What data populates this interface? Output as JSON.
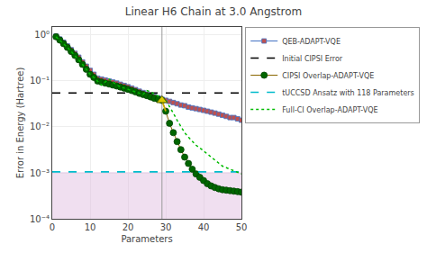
{
  "chart_data": {
    "type": "line",
    "title": "Linear H6 Chain at 3.0 Angstrom",
    "x_label": "Parameters",
    "y_label": "Error in Energy (Hartree)",
    "x": [
      1,
      2,
      3,
      4,
      5,
      6,
      7,
      8,
      9,
      10,
      11,
      12,
      13,
      14,
      15,
      16,
      17,
      18,
      19,
      20,
      21,
      22,
      23,
      24,
      25,
      26,
      27,
      28,
      29,
      30,
      31,
      32,
      33,
      34,
      35,
      36,
      37,
      38,
      39,
      40,
      41,
      42,
      43,
      44,
      45,
      46,
      47,
      48,
      49,
      50
    ],
    "xlim": [
      0,
      50
    ],
    "xticks": [
      0,
      10,
      20,
      30,
      40,
      50
    ],
    "ylim": [
      0.0001,
      1.5
    ],
    "yticks": [
      {
        "value": 0.0001,
        "label": "10⁻⁴"
      },
      {
        "value": 0.001,
        "label": "10⁻³"
      },
      {
        "value": 0.01,
        "label": "10⁻²"
      },
      {
        "value": 0.1,
        "label": "10⁻¹"
      },
      {
        "value": 1,
        "label": "10⁰"
      }
    ],
    "log": "y",
    "grid": true,
    "legend": "upper right",
    "bands": [
      {
        "y0": 0.0001,
        "y1": 0.00105,
        "color": "#ddb8dd"
      }
    ],
    "vlines": [
      {
        "x": 29,
        "color": "#999999"
      }
    ],
    "series": [
      {
        "name": "QEB-ADAPT-VQE",
        "type": "line",
        "color": "#4472c4",
        "marker": "square",
        "marker_color": "#c0504d",
        "line_style": "solid",
        "values": [
          0.95,
          0.82,
          0.7,
          0.58,
          0.48,
          0.4,
          0.33,
          0.26,
          0.21,
          0.17,
          0.14,
          0.115,
          0.11,
          0.105,
          0.1,
          0.095,
          0.09,
          0.085,
          0.08,
          0.075,
          0.07,
          0.065,
          0.06,
          0.056,
          0.052,
          0.049,
          0.046,
          0.043,
          0.04,
          0.038,
          0.036,
          0.034,
          0.032,
          0.03,
          0.029,
          0.027,
          0.026,
          0.025,
          0.024,
          0.023,
          0.022,
          0.021,
          0.02,
          0.019,
          0.018,
          0.017,
          0.016,
          0.016,
          0.015,
          0.014
        ]
      },
      {
        "name": "Initial CIPSI Error",
        "type": "hline",
        "y": 0.055,
        "color": "#000000",
        "line_style": "dashed"
      },
      {
        "name": "CIPSI Overlap-ADAPT-VQE",
        "type": "line",
        "color": "#886600",
        "marker": "circle",
        "marker_color": "#006600",
        "marker_edge_color": "#004400",
        "line_style": "solid",
        "values": [
          0.92,
          0.78,
          0.65,
          0.54,
          0.44,
          0.36,
          0.29,
          0.23,
          0.18,
          0.14,
          0.12,
          0.1,
          0.095,
          0.09,
          0.086,
          0.082,
          0.078,
          0.074,
          0.07,
          0.066,
          0.062,
          0.058,
          0.054,
          0.051,
          0.048,
          0.045,
          0.042,
          0.04,
          0.038,
          0.022,
          0.012,
          0.0075,
          0.0048,
          0.0032,
          0.0022,
          0.0016,
          0.0012,
          0.00095,
          0.0008,
          0.00068,
          0.00058,
          0.00052,
          0.00048,
          0.00045,
          0.00043,
          0.00042,
          0.00041,
          0.0004,
          0.00039,
          0.00038
        ],
        "highlight": {
          "x": [
            29,
            30
          ],
          "color": "#ccaa00",
          "point": 29,
          "point_color": "#ddcc00",
          "point_edge_color": "#556600",
          "point_marker": "triangle-up"
        }
      },
      {
        "name": "tUCCSD Ansatz with 118 Parameters",
        "type": "hline",
        "y": 0.00105,
        "color": "#00bbcc",
        "line_style": "dashed"
      },
      {
        "name": "Full-CI Overlap-ADAPT-VQE",
        "type": "line",
        "color": "#00bb00",
        "line_style": "dotted",
        "values": [
          0.92,
          0.78,
          0.65,
          0.54,
          0.44,
          0.36,
          0.29,
          0.23,
          0.18,
          0.14,
          0.12,
          0.1,
          0.082,
          0.095,
          0.11,
          0.095,
          0.082,
          0.075,
          0.07,
          0.065,
          0.062,
          0.058,
          0.054,
          0.051,
          0.062,
          0.058,
          0.052,
          0.046,
          0.042,
          0.038,
          0.028,
          0.02,
          0.014,
          0.01,
          0.0075,
          0.006,
          0.0048,
          0.004,
          0.0035,
          0.003,
          0.0026,
          0.0022,
          0.0019,
          0.0016,
          0.0014,
          0.0013,
          0.0012,
          0.0011,
          0.001,
          0.00095
        ]
      }
    ]
  }
}
